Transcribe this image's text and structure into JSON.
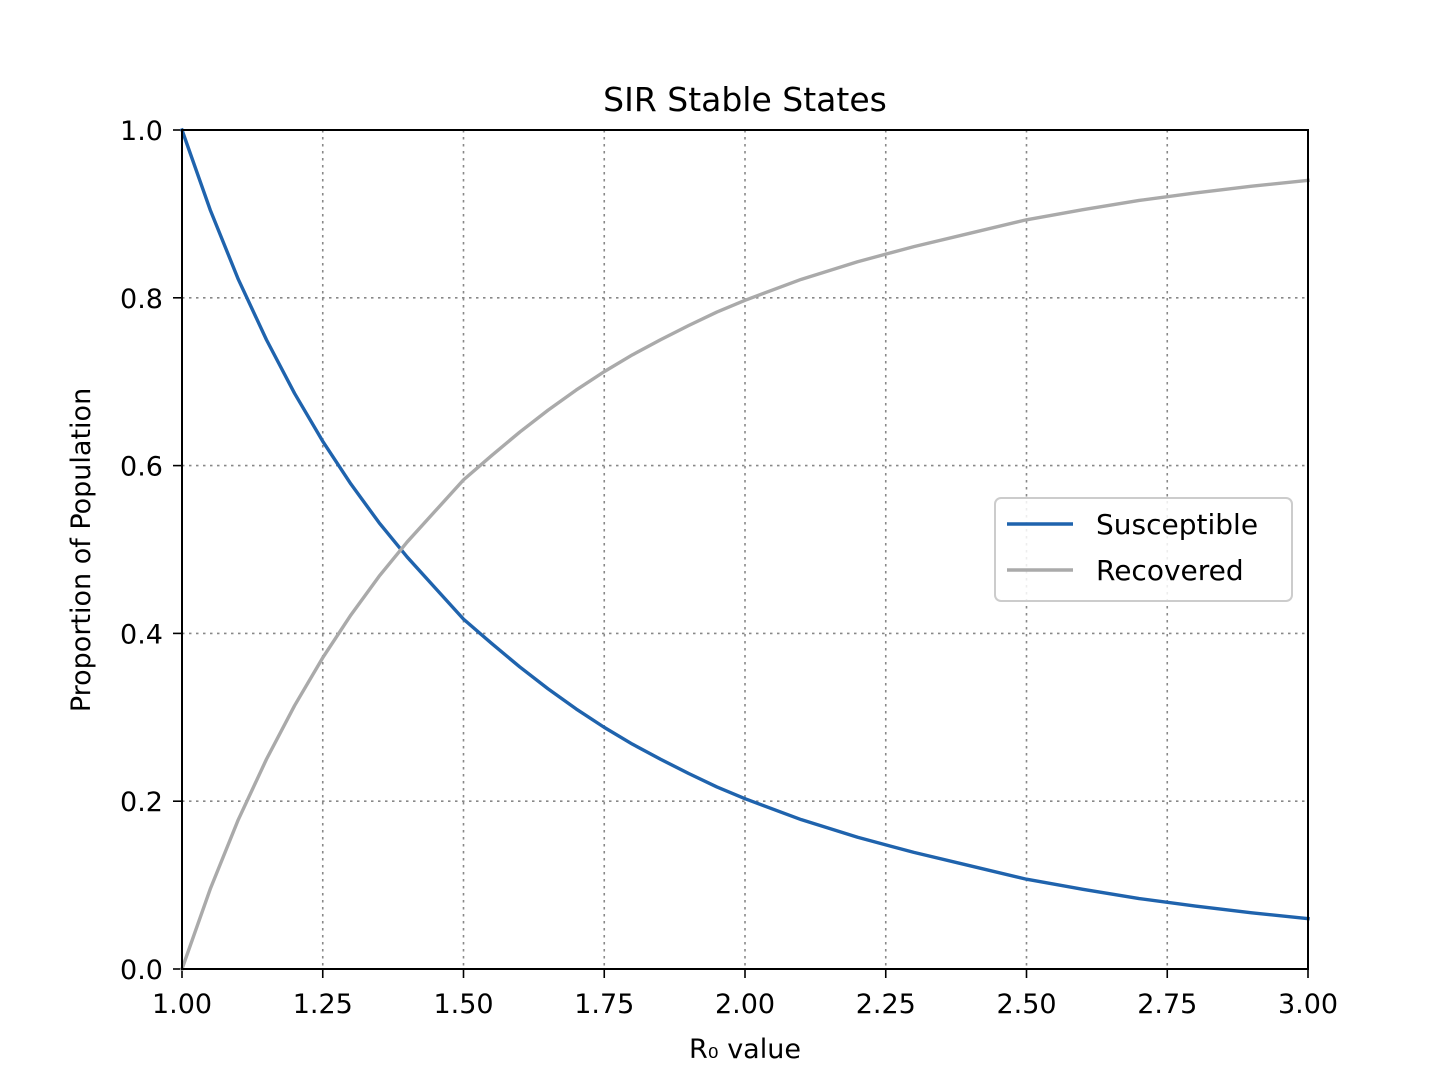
{
  "chart_data": {
    "type": "line",
    "title": "SIR Stable States",
    "xlabel": "R₀ value",
    "ylabel": "Proportion of Population",
    "xlim": [
      1.0,
      3.0
    ],
    "ylim": [
      0.0,
      1.0
    ],
    "x_ticks": [
      "1.00",
      "1.25",
      "1.50",
      "1.75",
      "2.00",
      "2.25",
      "2.50",
      "2.75",
      "3.00"
    ],
    "y_ticks": [
      "0.0",
      "0.2",
      "0.4",
      "0.6",
      "0.8",
      "1.0"
    ],
    "grid": true,
    "legend_position": "center-right",
    "x": [
      1.0,
      1.05,
      1.1,
      1.15,
      1.2,
      1.25,
      1.3,
      1.35,
      1.4,
      1.45,
      1.5,
      1.55,
      1.6,
      1.65,
      1.7,
      1.75,
      1.8,
      1.85,
      1.9,
      1.95,
      2.0,
      2.1,
      2.2,
      2.3,
      2.4,
      2.5,
      2.6,
      2.7,
      2.8,
      2.9,
      3.0
    ],
    "series": [
      {
        "name": "Susceptible",
        "color": "#1f63ad",
        "values": [
          1.0,
          0.905,
          0.822,
          0.75,
          0.686,
          0.629,
          0.578,
          0.532,
          0.491,
          0.454,
          0.417,
          0.388,
          0.36,
          0.334,
          0.31,
          0.288,
          0.268,
          0.25,
          0.233,
          0.217,
          0.203,
          0.178,
          0.157,
          0.139,
          0.123,
          0.107,
          0.095,
          0.084,
          0.075,
          0.067,
          0.06
        ]
      },
      {
        "name": "Recovered",
        "color": "#aaaaaa",
        "values": [
          0.0,
          0.095,
          0.178,
          0.25,
          0.314,
          0.371,
          0.422,
          0.468,
          0.509,
          0.546,
          0.583,
          0.612,
          0.64,
          0.666,
          0.69,
          0.712,
          0.732,
          0.75,
          0.767,
          0.783,
          0.797,
          0.822,
          0.843,
          0.861,
          0.877,
          0.893,
          0.905,
          0.916,
          0.925,
          0.933,
          0.94
        ]
      }
    ]
  }
}
